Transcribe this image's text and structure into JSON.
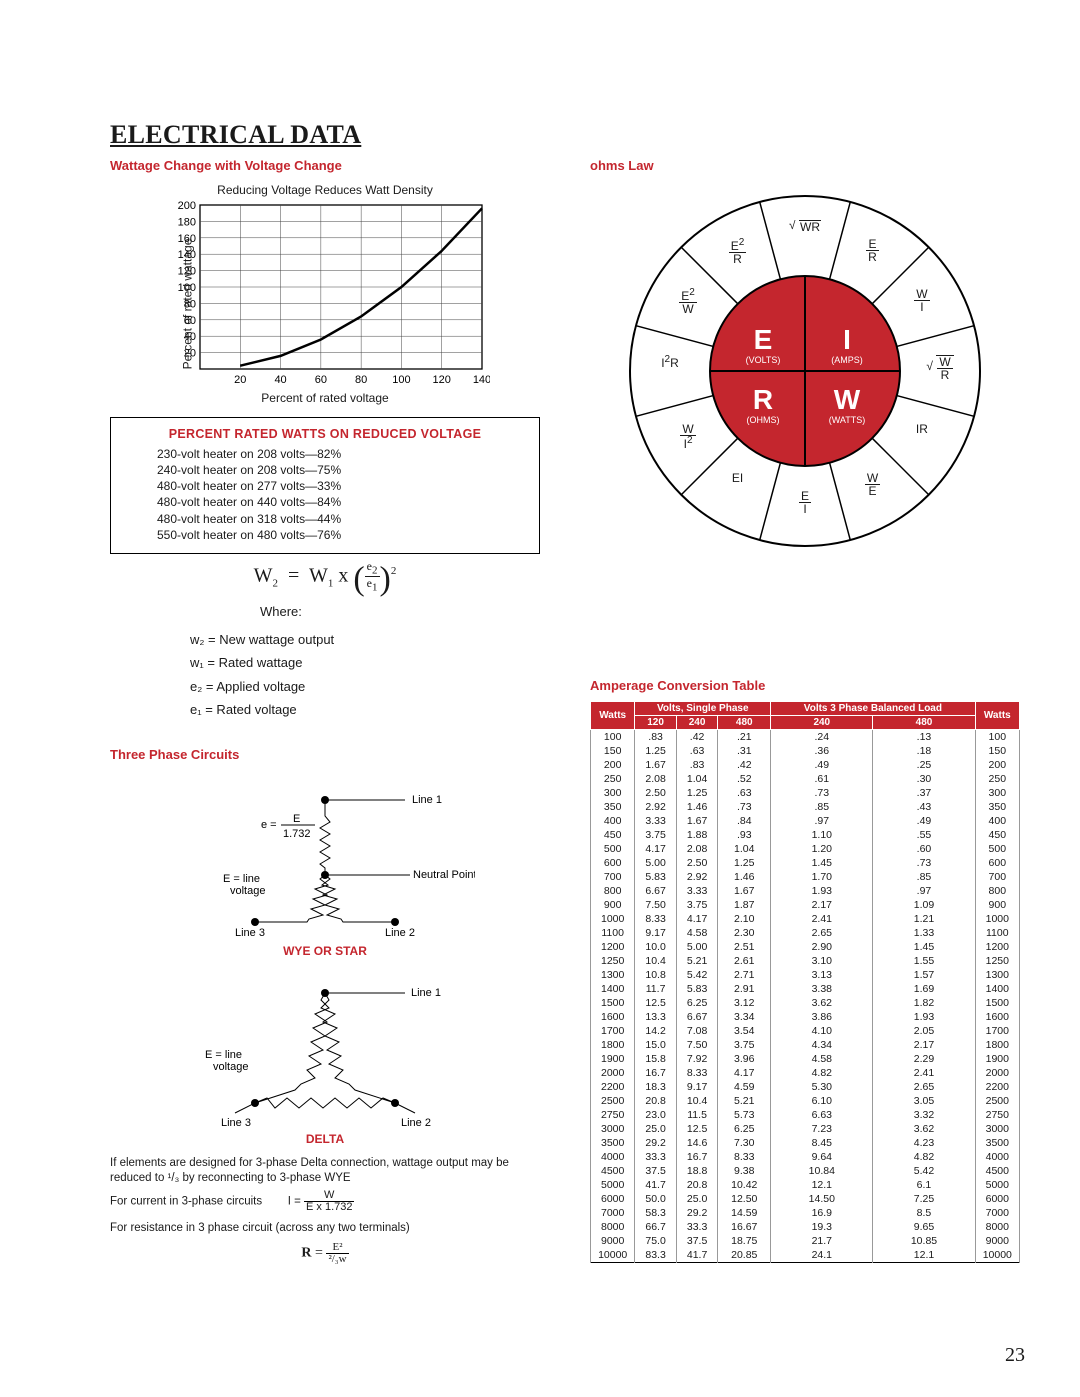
{
  "page_title": "ELECTRICAL DATA",
  "page_number": "23",
  "wattage_section": {
    "title": "Wattage Change with Voltage Change",
    "chart": {
      "type": "line",
      "title": "Reducing Voltage Reduces Watt Density",
      "xlabel": "Percent of rated voltage",
      "ylabel": "Percent of rated wattage",
      "xlim": [
        0,
        140
      ],
      "ylim": [
        0,
        200
      ],
      "xtick_step": 20,
      "ytick_step": 20,
      "xtick_start": 20,
      "curve_color": "#000000",
      "grid_color": "#444444",
      "background_color": "#ffffff",
      "line_width": 2.5,
      "points_x": [
        20,
        40,
        60,
        80,
        100,
        120,
        140
      ],
      "points_y": [
        4,
        16,
        36,
        64,
        100,
        144,
        196
      ]
    },
    "box": {
      "title": "PERCENT RATED WATTS ON REDUCED VOLTAGE",
      "lines": [
        "230-volt heater on 208 volts—82%",
        "240-volt heater on 208 volts—75%",
        "480-volt heater on 277 volts—33%",
        "480-volt heater on 440 volts—84%",
        "480-volt heater on 318 volts—44%",
        "550-volt heater on 480 volts—76%"
      ]
    },
    "formula": {
      "expr": "W₂ = W₁ x (e₂ / e₁)²",
      "where": "Where:",
      "defs": [
        "w₂ = New wattage output",
        "w₁ = Rated wattage",
        "e₂ = Applied voltage",
        "e₁ = Rated voltage"
      ]
    }
  },
  "ohms": {
    "title": "ohms Law",
    "wheel": {
      "outer_radius": 175,
      "inner_radius": 95,
      "fill_color": "#c4262e",
      "outline_color": "#000000",
      "background_color": "#ffffff",
      "centers": [
        {
          "letter": "E",
          "sub": "(VOLTS)"
        },
        {
          "letter": "I",
          "sub": "(AMPS)"
        },
        {
          "letter": "R",
          "sub": "(OHMS)"
        },
        {
          "letter": "W",
          "sub": "(WATTS)"
        }
      ],
      "ring_labels": [
        "√WR",
        "E/R",
        "W/I",
        "√(W/R)",
        "IR",
        "W/E",
        "E/I",
        "EI",
        "W/I²",
        "I²R",
        "E²/W",
        "E²/R"
      ]
    }
  },
  "three_phase": {
    "title": "Three Phase Circuits",
    "wye": {
      "label": "WYE OR STAR",
      "line1": "Line 1",
      "line2": "Line 2",
      "line3": "Line 3",
      "neutral": "Neutral Point",
      "e_formula_top": "E",
      "e_formula_bot": "1.732",
      "e_line": "E = line",
      "voltage": "voltage"
    },
    "delta": {
      "label": "DELTA",
      "line1": "Line 1",
      "line2": "Line 2",
      "line3": "Line 3",
      "e_line": "E = line",
      "voltage": "voltage"
    },
    "notes": {
      "n1": "If elements are designed for 3-phase Delta connection, wattage output may be reduced to ¹/₃ by reconnecting to 3-phase WYE",
      "n2": "For current in 3-phase circuits",
      "n2_eq_lhs": "I =",
      "n2_eq_top": "W",
      "n2_eq_bot": "E x 1.732",
      "n3": "For resistance in 3 phase circuit (across any two terminals)",
      "n3_eq_lhs": "R =",
      "n3_eq_top": "E²",
      "n3_eq_bot": "²/₃w"
    }
  },
  "amperage": {
    "title": "Amperage Conversion Table",
    "header_group1": "Volts, Single Phase",
    "header_group2": "Volts 3 Phase Balanced Load",
    "columns": [
      "Watts",
      "120",
      "240",
      "480",
      "240",
      "480",
      "Watts"
    ],
    "header_bg": "#c4262e",
    "header_fg": "#ffffff",
    "cell_fontsize": 10.5,
    "rows": [
      [
        100,
        ".83",
        ".42",
        ".21",
        ".24",
        ".13",
        100
      ],
      [
        150,
        "1.25",
        ".63",
        ".31",
        ".36",
        ".18",
        150
      ],
      [
        200,
        "1.67",
        ".83",
        ".42",
        ".49",
        ".25",
        200
      ],
      [
        250,
        "2.08",
        "1.04",
        ".52",
        ".61",
        ".30",
        250
      ],
      [
        300,
        "2.50",
        "1.25",
        ".63",
        ".73",
        ".37",
        300
      ],
      [
        350,
        "2.92",
        "1.46",
        ".73",
        ".85",
        ".43",
        350
      ],
      [
        400,
        "3.33",
        "1.67",
        ".84",
        ".97",
        ".49",
        400
      ],
      [
        450,
        "3.75",
        "1.88",
        ".93",
        "1.10",
        ".55",
        450
      ],
      [
        500,
        "4.17",
        "2.08",
        "1.04",
        "1.20",
        ".60",
        500
      ],
      [
        600,
        "5.00",
        "2.50",
        "1.25",
        "1.45",
        ".73",
        600
      ],
      [
        700,
        "5.83",
        "2.92",
        "1.46",
        "1.70",
        ".85",
        700
      ],
      [
        800,
        "6.67",
        "3.33",
        "1.67",
        "1.93",
        ".97",
        800
      ],
      [
        900,
        "7.50",
        "3.75",
        "1.87",
        "2.17",
        "1.09",
        900
      ],
      [
        1000,
        "8.33",
        "4.17",
        "2.10",
        "2.41",
        "1.21",
        1000
      ],
      [
        1100,
        "9.17",
        "4.58",
        "2.30",
        "2.65",
        "1.33",
        1100
      ],
      [
        1200,
        "10.0",
        "5.00",
        "2.51",
        "2.90",
        "1.45",
        1200
      ],
      [
        1250,
        "10.4",
        "5.21",
        "2.61",
        "3.10",
        "1.55",
        1250
      ],
      [
        1300,
        "10.8",
        "5.42",
        "2.71",
        "3.13",
        "1.57",
        1300
      ],
      [
        1400,
        "11.7",
        "5.83",
        "2.91",
        "3.38",
        "1.69",
        1400
      ],
      [
        1500,
        "12.5",
        "6.25",
        "3.12",
        "3.62",
        "1.82",
        1500
      ],
      [
        1600,
        "13.3",
        "6.67",
        "3.34",
        "3.86",
        "1.93",
        1600
      ],
      [
        1700,
        "14.2",
        "7.08",
        "3.54",
        "4.10",
        "2.05",
        1700
      ],
      [
        1800,
        "15.0",
        "7.50",
        "3.75",
        "4.34",
        "2.17",
        1800
      ],
      [
        1900,
        "15.8",
        "7.92",
        "3.96",
        "4.58",
        "2.29",
        1900
      ],
      [
        2000,
        "16.7",
        "8.33",
        "4.17",
        "4.82",
        "2.41",
        2000
      ],
      [
        2200,
        "18.3",
        "9.17",
        "4.59",
        "5.30",
        "2.65",
        2200
      ],
      [
        2500,
        "20.8",
        "10.4",
        "5.21",
        "6.10",
        "3.05",
        2500
      ],
      [
        2750,
        "23.0",
        "11.5",
        "5.73",
        "6.63",
        "3.32",
        2750
      ],
      [
        3000,
        "25.0",
        "12.5",
        "6.25",
        "7.23",
        "3.62",
        3000
      ],
      [
        3500,
        "29.2",
        "14.6",
        "7.30",
        "8.45",
        "4.23",
        3500
      ],
      [
        4000,
        "33.3",
        "16.7",
        "8.33",
        "9.64",
        "4.82",
        4000
      ],
      [
        4500,
        "37.5",
        "18.8",
        "9.38",
        "10.84",
        "5.42",
        4500
      ],
      [
        5000,
        "41.7",
        "20.8",
        "10.42",
        "12.1",
        "6.1",
        5000
      ],
      [
        6000,
        "50.0",
        "25.0",
        "12.50",
        "14.50",
        "7.25",
        6000
      ],
      [
        7000,
        "58.3",
        "29.2",
        "14.59",
        "16.9",
        "8.5",
        7000
      ],
      [
        8000,
        "66.7",
        "33.3",
        "16.67",
        "19.3",
        "9.65",
        8000
      ],
      [
        9000,
        "75.0",
        "37.5",
        "18.75",
        "21.7",
        "10.85",
        9000
      ],
      [
        10000,
        "83.3",
        "41.7",
        "20.85",
        "24.1",
        "12.1",
        10000
      ]
    ]
  }
}
